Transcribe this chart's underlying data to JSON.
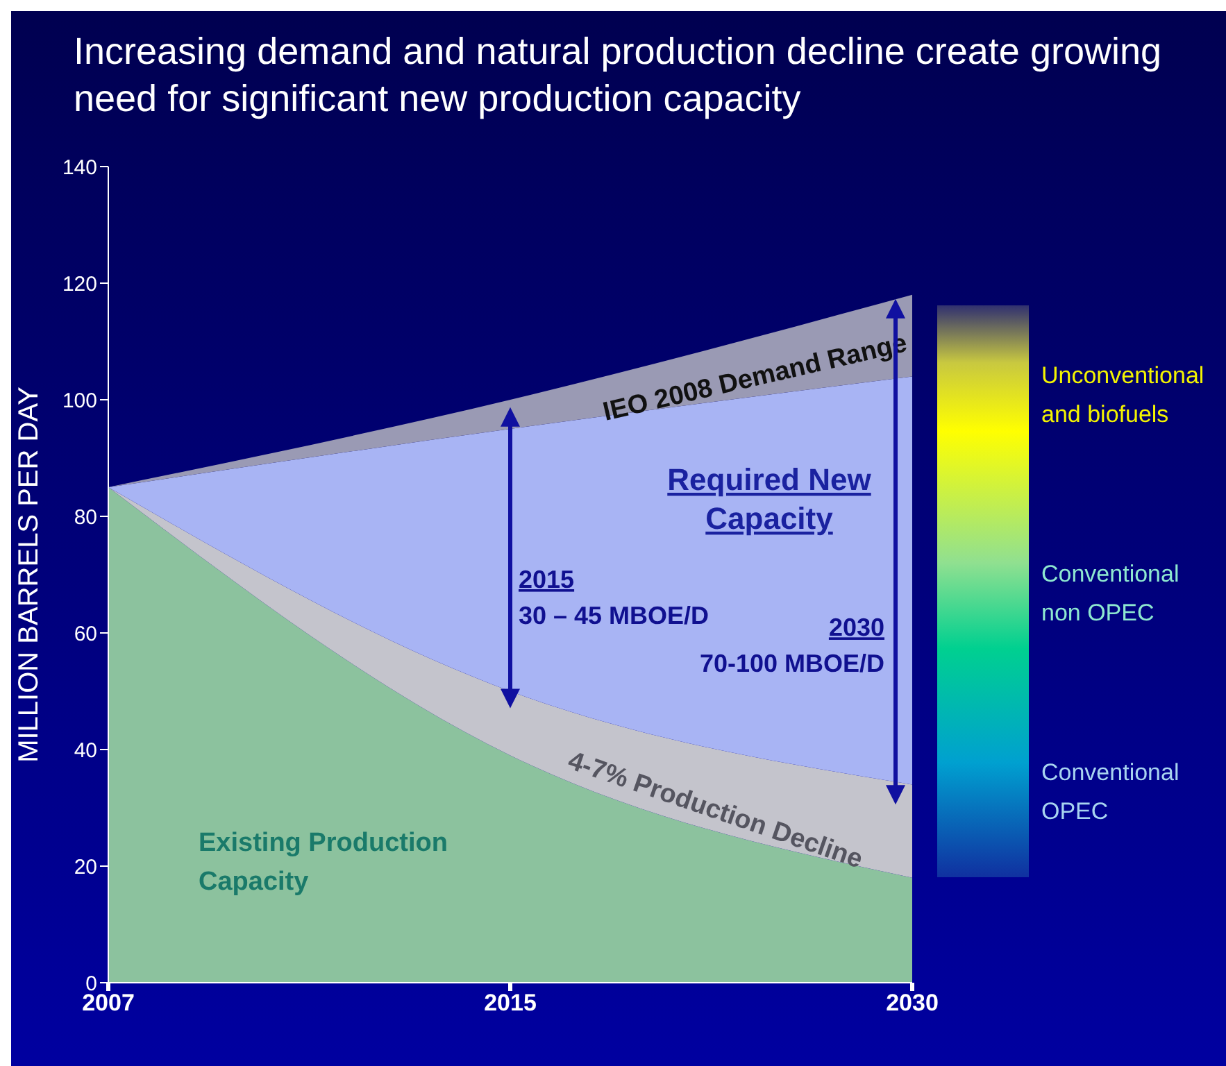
{
  "chart_data": {
    "type": "area",
    "title": "Increasing demand and natural production decline create growing need for significant new production capacity",
    "ylabel": "MILLION BARRELS PER DAY",
    "categories": [
      "2007",
      "2015",
      "2030"
    ],
    "stacked": true,
    "ylim": [
      0,
      140
    ],
    "yticks": [
      0,
      20,
      40,
      60,
      80,
      100,
      120,
      140
    ],
    "series": [
      {
        "name": "Existing Production Capacity",
        "color": "#8cc29e",
        "values": [
          85,
          39,
          18
        ]
      },
      {
        "name": "4-7% Production Decline",
        "color": "#c4c4cc",
        "values": [
          0,
          11,
          16
        ]
      },
      {
        "name": "Required New Capacity",
        "color": "#a8b4f4",
        "values": [
          0,
          45,
          70
        ]
      },
      {
        "name": "IEO 2008 Demand Range",
        "color": "#9a9ab4",
        "values": [
          0,
          5,
          14
        ]
      }
    ],
    "annotations": [
      "2015\n30 – 45 MBOE/D",
      "2030\n70-100 MBOE/D",
      "Unconventional and biofuels",
      "Conventional non OPEC",
      "Conventional OPEC"
    ]
  }
}
